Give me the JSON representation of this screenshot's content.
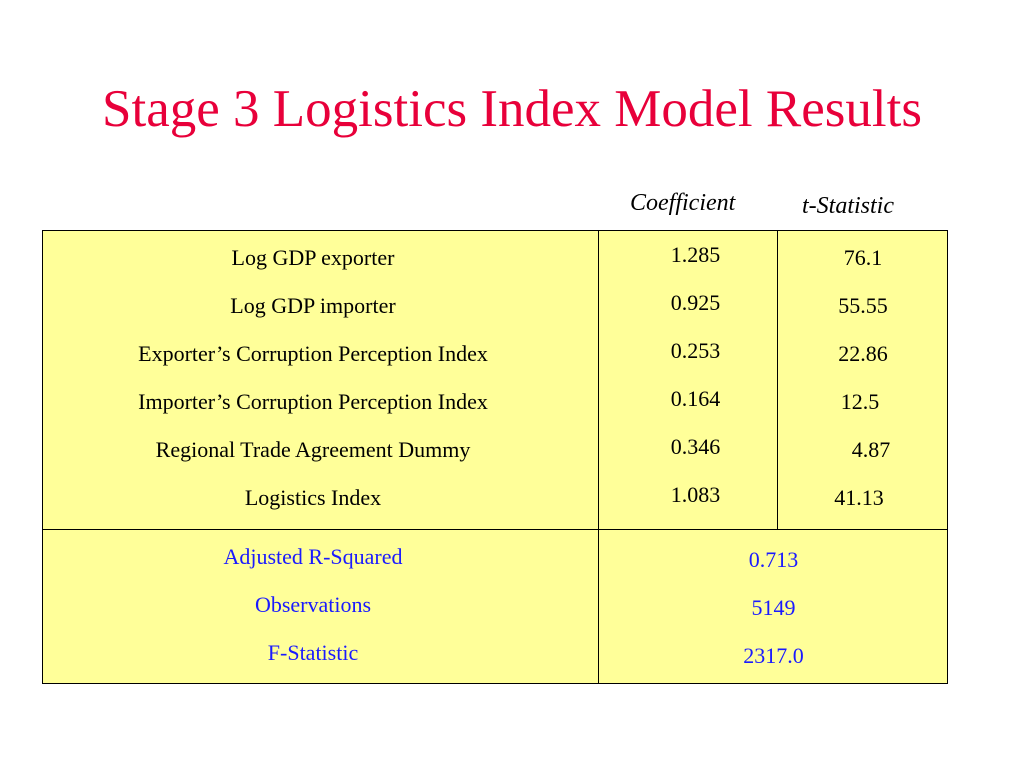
{
  "title": "Stage 3 Logistics Index Model Results",
  "columns": {
    "coefficient": "Coefficient",
    "t_statistic": "t-Statistic"
  },
  "variables": [
    {
      "label": "Log GDP exporter",
      "coefficient": "1.285",
      "t_statistic": "76.1"
    },
    {
      "label": "Log GDP importer",
      "coefficient": "0.925",
      "t_statistic": "55.55"
    },
    {
      "label": "Exporter’s Corruption Perception Index",
      "coefficient": "0.253",
      "t_statistic": "22.86"
    },
    {
      "label": "Importer’s Corruption Perception Index",
      "coefficient": "0.164",
      "t_statistic": "12.5"
    },
    {
      "label": "Regional Trade Agreement Dummy",
      "coefficient": "0.346",
      "t_statistic": "4.87"
    },
    {
      "label": "Logistics Index",
      "coefficient": "1.083",
      "t_statistic": "41.13"
    }
  ],
  "summary": [
    {
      "label": "Adjusted R-Squared",
      "value": "0.713"
    },
    {
      "label": "Observations",
      "value": "5149"
    },
    {
      "label": "F-Statistic",
      "value": "2317.0"
    }
  ],
  "colors": {
    "title": "#e8003a",
    "table_fill": "#ffff99",
    "summary_text": "#1a1aff"
  }
}
